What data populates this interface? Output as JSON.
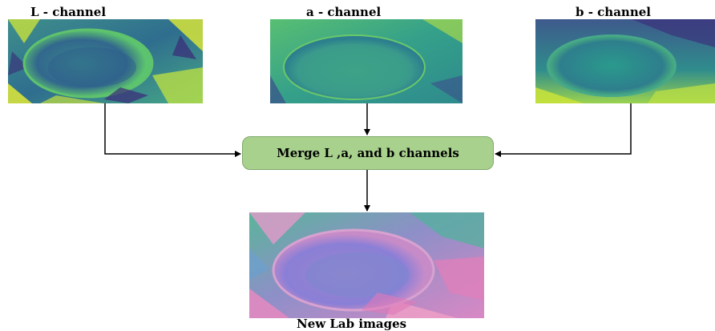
{
  "labels": {
    "l_channel": "L - channel",
    "a_channel": "a - channel",
    "b_channel": "b - channel",
    "merge": "Merge L ,a, and b channels",
    "output": "New Lab images"
  },
  "colors": {
    "merge_box_fill": "#a9d18e",
    "merge_box_border": "#7fa86a",
    "arrow": "#000000",
    "viridis_dark": "#3b2a78",
    "viridis_mid": "#2a9a8c",
    "viridis_light": "#c9e23a",
    "lab_pink": "#d97fc1",
    "lab_teal": "#4fb39a",
    "lab_violet": "#8a7fd6"
  }
}
